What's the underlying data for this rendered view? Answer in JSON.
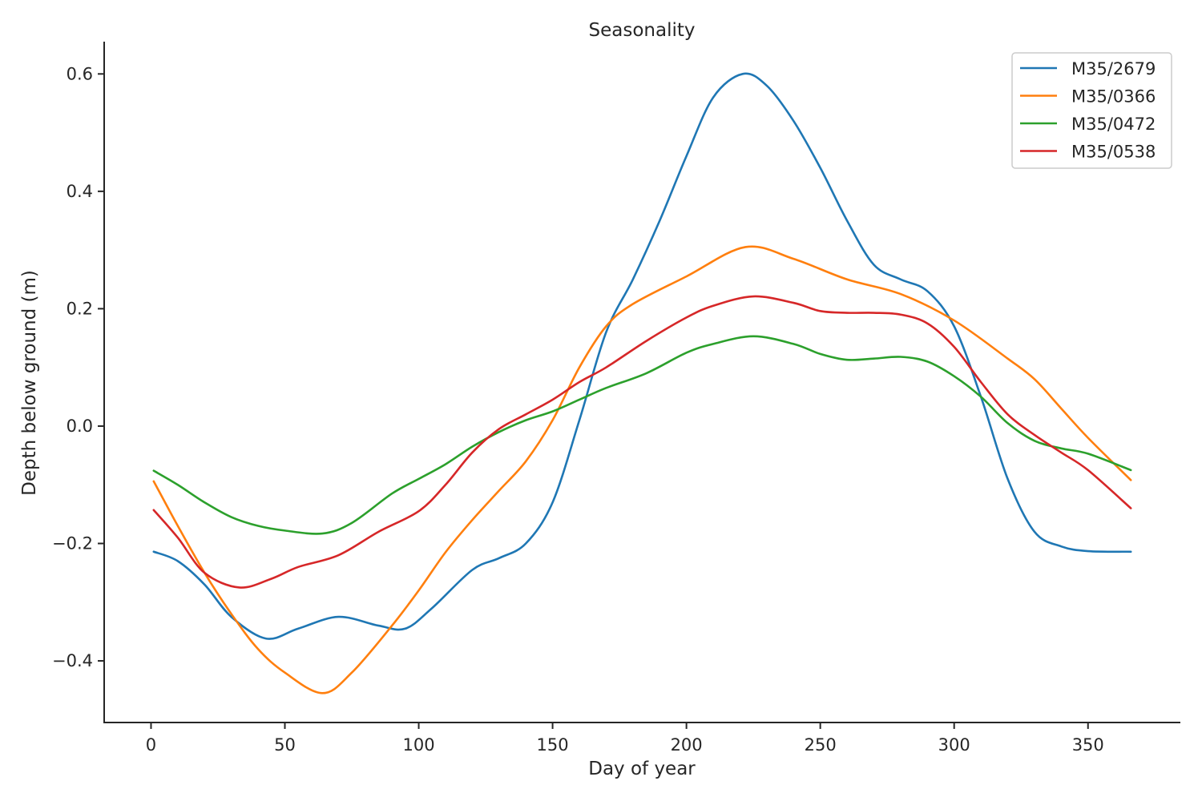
{
  "chart_data": {
    "type": "line",
    "title": "Seasonality",
    "xlabel": "Day of year",
    "ylabel": "Depth below ground (m)",
    "xlim": [
      -17.5,
      384.5
    ],
    "ylim": [
      -0.505,
      0.655
    ],
    "xticks": [
      0,
      50,
      100,
      150,
      200,
      250,
      300,
      350
    ],
    "yticks": [
      -0.4,
      -0.2,
      0.0,
      0.2,
      0.4,
      0.6
    ],
    "ytick_labels": [
      "−0.4",
      "−0.2",
      "0.0",
      "0.2",
      "0.4",
      "0.6"
    ],
    "xtick_labels": [
      "0",
      "50",
      "100",
      "150",
      "200",
      "250",
      "300",
      "350"
    ],
    "grid": false,
    "legend_position": "top-right",
    "series": [
      {
        "name": "M35/2679",
        "color": "#1f77b4",
        "x": [
          1,
          10,
          20,
          30,
          43,
          55,
          70,
          85,
          95,
          105,
          120,
          130,
          140,
          150,
          160,
          170,
          180,
          190,
          200,
          210,
          221,
          230,
          240,
          250,
          260,
          270,
          280,
          290,
          300,
          310,
          320,
          330,
          340,
          350,
          366
        ],
        "y": [
          -0.214,
          -0.23,
          -0.27,
          -0.325,
          -0.362,
          -0.345,
          -0.325,
          -0.34,
          -0.345,
          -0.31,
          -0.245,
          -0.225,
          -0.2,
          -0.13,
          0.01,
          0.16,
          0.25,
          0.35,
          0.46,
          0.56,
          0.6,
          0.58,
          0.52,
          0.44,
          0.35,
          0.275,
          0.25,
          0.23,
          0.17,
          0.05,
          -0.09,
          -0.18,
          -0.205,
          -0.213,
          -0.214
        ]
      },
      {
        "name": "M35/0366",
        "color": "#ff7f0e",
        "x": [
          1,
          10,
          20,
          30,
          40,
          50,
          64,
          75,
          90,
          100,
          110,
          120,
          130,
          140,
          150,
          160,
          170,
          180,
          200,
          222,
          240,
          260,
          280,
          300,
          320,
          330,
          340,
          350,
          366
        ],
        "y": [
          -0.094,
          -0.17,
          -0.25,
          -0.32,
          -0.38,
          -0.42,
          -0.455,
          -0.42,
          -0.34,
          -0.28,
          -0.215,
          -0.16,
          -0.11,
          -0.06,
          0.01,
          0.1,
          0.17,
          0.208,
          0.255,
          0.305,
          0.285,
          0.25,
          0.225,
          0.18,
          0.115,
          0.08,
          0.03,
          -0.02,
          -0.092
        ]
      },
      {
        "name": "M35/0472",
        "color": "#2ca02c",
        "x": [
          1,
          10,
          20,
          30,
          40,
          50,
          64,
          75,
          90,
          100,
          110,
          120,
          130,
          140,
          150,
          160,
          170,
          185,
          200,
          210,
          225,
          240,
          250,
          260,
          270,
          280,
          290,
          300,
          310,
          320,
          330,
          340,
          350,
          366
        ],
        "y": [
          -0.076,
          -0.1,
          -0.13,
          -0.155,
          -0.17,
          -0.178,
          -0.183,
          -0.165,
          -0.115,
          -0.09,
          -0.065,
          -0.035,
          -0.01,
          0.01,
          0.025,
          0.045,
          0.065,
          0.09,
          0.125,
          0.14,
          0.153,
          0.14,
          0.123,
          0.113,
          0.115,
          0.118,
          0.11,
          0.085,
          0.05,
          0.005,
          -0.025,
          -0.038,
          -0.047,
          -0.075
        ]
      },
      {
        "name": "M35/0538",
        "color": "#d62728",
        "x": [
          1,
          10,
          20,
          33,
          45,
          55,
          70,
          85,
          100,
          110,
          120,
          130,
          140,
          150,
          160,
          170,
          185,
          200,
          210,
          225,
          240,
          250,
          260,
          270,
          280,
          290,
          300,
          310,
          320,
          330,
          340,
          350,
          366
        ],
        "y": [
          -0.143,
          -0.19,
          -0.25,
          -0.275,
          -0.26,
          -0.24,
          -0.22,
          -0.18,
          -0.145,
          -0.1,
          -0.045,
          -0.005,
          0.02,
          0.045,
          0.075,
          0.1,
          0.145,
          0.185,
          0.205,
          0.221,
          0.21,
          0.196,
          0.193,
          0.193,
          0.19,
          0.175,
          0.135,
          0.075,
          0.02,
          -0.015,
          -0.045,
          -0.075,
          -0.14
        ]
      }
    ]
  }
}
